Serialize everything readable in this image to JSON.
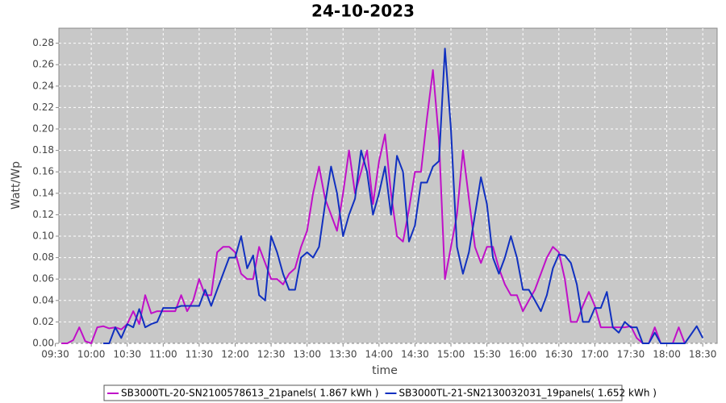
{
  "chart_data": {
    "type": "line",
    "title": "24-10-2023",
    "xlabel": "time",
    "ylabel": "Watt/Wp",
    "x": [
      "09:35",
      "09:40",
      "09:45",
      "09:50",
      "09:55",
      "10:00",
      "10:05",
      "10:10",
      "10:15",
      "10:20",
      "10:25",
      "10:30",
      "10:35",
      "10:40",
      "10:45",
      "10:50",
      "10:55",
      "11:00",
      "11:05",
      "11:10",
      "11:15",
      "11:20",
      "11:25",
      "11:30",
      "11:35",
      "11:40",
      "11:45",
      "11:50",
      "11:55",
      "12:00",
      "12:05",
      "12:10",
      "12:15",
      "12:20",
      "12:25",
      "12:30",
      "12:35",
      "12:40",
      "12:45",
      "12:50",
      "12:55",
      "13:00",
      "13:05",
      "13:10",
      "13:15",
      "13:20",
      "13:25",
      "13:30",
      "13:35",
      "13:40",
      "13:45",
      "13:50",
      "13:55",
      "14:00",
      "14:05",
      "14:10",
      "14:15",
      "14:20",
      "14:25",
      "14:30",
      "14:35",
      "14:40",
      "14:45",
      "14:50",
      "14:55",
      "15:00",
      "15:05",
      "15:10",
      "15:15",
      "15:20",
      "15:25",
      "15:30",
      "15:35",
      "15:40",
      "15:45",
      "15:50",
      "15:55",
      "16:00",
      "16:05",
      "16:10",
      "16:15",
      "16:20",
      "16:25",
      "16:30",
      "16:35",
      "16:40",
      "16:45",
      "16:50",
      "16:55",
      "17:00",
      "17:05",
      "17:10",
      "17:15",
      "17:20",
      "17:25",
      "17:30",
      "17:35",
      "17:40",
      "17:45",
      "17:50",
      "17:55",
      "18:00",
      "18:05",
      "18:10",
      "18:15",
      "18:20",
      "18:25",
      "18:30"
    ],
    "series": [
      {
        "name": "SB3000TL-20-SN2100578613_21panels( 1.867 kWh )",
        "color": "#c010c8",
        "values": [
          0,
          0,
          0.003,
          0.015,
          0.002,
          0,
          0.015,
          0.016,
          0.014,
          0.015,
          0.013,
          0.018,
          0.03,
          0.018,
          0.045,
          0.028,
          0.03,
          0.03,
          0.03,
          0.03,
          0.045,
          0.03,
          0.04,
          0.06,
          0.045,
          0.045,
          0.085,
          0.09,
          0.09,
          0.085,
          0.065,
          0.06,
          0.06,
          0.09,
          0.075,
          0.06,
          0.06,
          0.055,
          0.065,
          0.07,
          0.09,
          0.105,
          0.14,
          0.165,
          0.135,
          0.12,
          0.105,
          0.14,
          0.18,
          0.14,
          0.16,
          0.18,
          0.13,
          0.17,
          0.195,
          0.14,
          0.1,
          0.095,
          0.125,
          0.16,
          0.16,
          0.21,
          0.255,
          0.19,
          0.06,
          0.09,
          0.12,
          0.18,
          0.135,
          0.09,
          0.075,
          0.09,
          0.09,
          0.07,
          0.055,
          0.045,
          0.045,
          0.03,
          0.04,
          0.05,
          0.065,
          0.08,
          0.09,
          0.085,
          0.06,
          0.02,
          0.02,
          0.035,
          0.048,
          0.035,
          0.015,
          0.015,
          0.015,
          0.015,
          0.015,
          0.016,
          0.005,
          0,
          0,
          0.015,
          0,
          0,
          0,
          0.015,
          0,
          null,
          null,
          null
        ]
      },
      {
        "name": "SB3000TL-21-SN2130032031_19panels( 1.652 kWh )",
        "color": "#1030c0",
        "values": [
          null,
          null,
          null,
          null,
          null,
          null,
          null,
          0,
          0,
          0.015,
          0.005,
          0.018,
          0.015,
          0.032,
          0.015,
          0.018,
          0.02,
          0.033,
          0.033,
          0.033,
          0.035,
          0.035,
          0.035,
          0.035,
          0.05,
          0.035,
          0.05,
          0.065,
          0.08,
          0.08,
          0.1,
          0.07,
          0.082,
          0.045,
          0.04,
          0.1,
          0.085,
          0.065,
          0.05,
          0.05,
          0.08,
          0.085,
          0.08,
          0.09,
          0.13,
          0.165,
          0.14,
          0.1,
          0.12,
          0.135,
          0.18,
          0.16,
          0.12,
          0.14,
          0.165,
          0.12,
          0.175,
          0.16,
          0.095,
          0.11,
          0.15,
          0.15,
          0.165,
          0.17,
          0.275,
          0.2,
          0.09,
          0.065,
          0.085,
          0.12,
          0.155,
          0.13,
          0.08,
          0.065,
          0.08,
          0.1,
          0.08,
          0.05,
          0.05,
          0.04,
          0.03,
          0.045,
          0.07,
          0.083,
          0.082,
          0.075,
          0.055,
          0.02,
          0.02,
          0.033,
          0.033,
          0.048,
          0.015,
          0.01,
          0.02,
          0.015,
          0.015,
          0,
          0,
          0.01,
          0,
          0,
          0,
          0,
          0,
          0.008,
          0.016,
          0.005
        ]
      }
    ],
    "xlim": [
      "09:33",
      "18:42"
    ],
    "xticks": [
      "09:30",
      "10:00",
      "10:30",
      "11:00",
      "11:30",
      "12:00",
      "12:30",
      "13:00",
      "13:30",
      "14:00",
      "14:30",
      "15:00",
      "15:30",
      "16:00",
      "16:30",
      "17:00",
      "17:30",
      "18:00",
      "18:30"
    ],
    "ylim": [
      0,
      0.294
    ],
    "yticks": [
      {
        "value": 0,
        "label": "0.00"
      },
      {
        "value": 0.02,
        "label": "0.02"
      },
      {
        "value": 0.04,
        "label": "0.04"
      },
      {
        "value": 0.06,
        "label": "0.06"
      },
      {
        "value": 0.08,
        "label": "0.08"
      },
      {
        "value": 0.1,
        "label": "0.10"
      },
      {
        "value": 0.12,
        "label": "0.12"
      },
      {
        "value": 0.14,
        "label": "0.14"
      },
      {
        "value": 0.16,
        "label": "0.16"
      },
      {
        "value": 0.18,
        "label": "0.18"
      },
      {
        "value": 0.2,
        "label": "0.20"
      },
      {
        "value": 0.22,
        "label": "0.22"
      },
      {
        "value": 0.24,
        "label": "0.24"
      },
      {
        "value": 0.26,
        "label": "0.26"
      },
      {
        "value": 0.28,
        "label": "0.28"
      }
    ],
    "grid": true,
    "legend": "bottom"
  }
}
